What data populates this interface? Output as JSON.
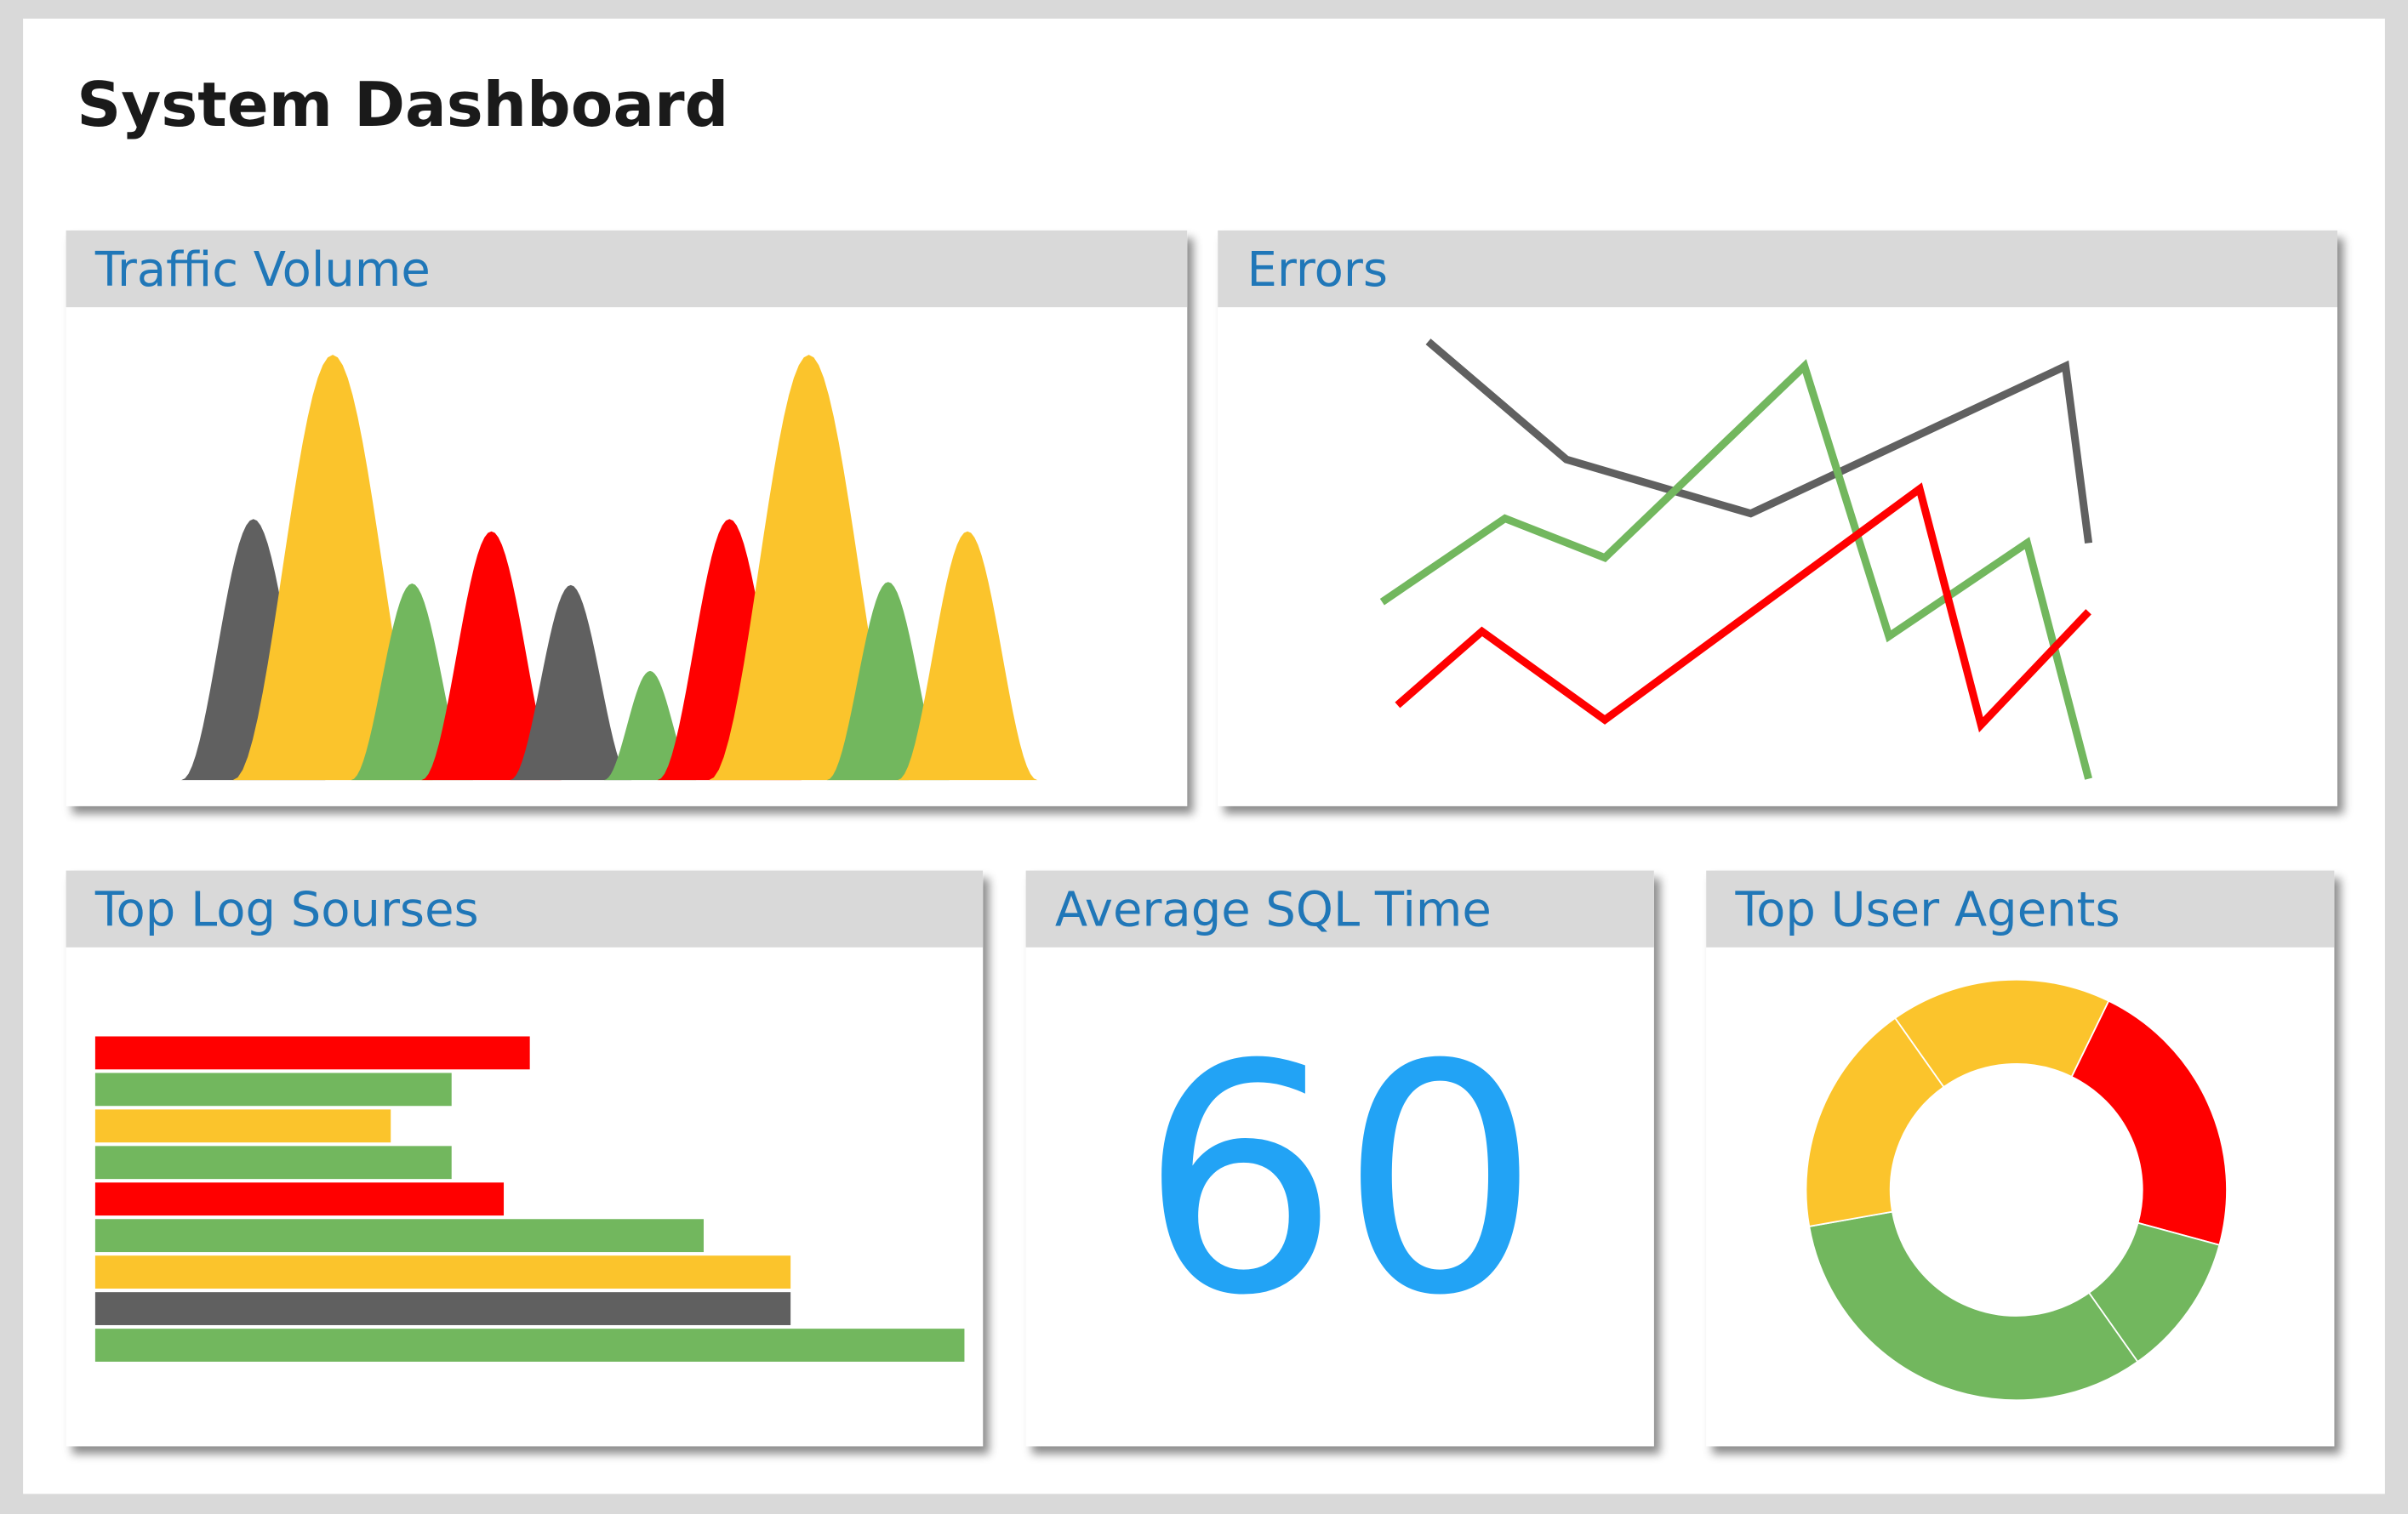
{
  "header": {
    "title": "System Dashboard"
  },
  "chart_data": [
    {
      "type": "peaks",
      "title": "Traffic Volume",
      "values": [
        170,
        277,
        128,
        162,
        127,
        71,
        170,
        277,
        129,
        162
      ],
      "colors": [
        "#606060",
        "#fbc42c",
        "#72b75e",
        "#ff0000",
        "#606060",
        "#72b75e",
        "#ff0000",
        "#fbc42c",
        "#72b75e",
        "#fbc42c"
      ]
    },
    {
      "type": "line",
      "title": "Errors",
      "xlim": [
        0,
        100
      ],
      "ylim": [
        0,
        100
      ],
      "series": [
        {
          "color": "#606060",
          "x": [
            10,
            28,
            52,
            93,
            96
          ],
          "values": [
            93,
            69,
            58,
            88,
            52
          ]
        },
        {
          "color": "#72b75e",
          "x": [
            4,
            20,
            33,
            59,
            70,
            88,
            96
          ],
          "values": [
            40,
            57,
            49,
            88,
            33,
            52,
            4
          ]
        },
        {
          "color": "#ff0000",
          "x": [
            6,
            17,
            33,
            74,
            82,
            96
          ],
          "values": [
            19,
            34,
            16,
            63,
            15,
            38
          ]
        }
      ]
    },
    {
      "type": "hbar",
      "title": "Top Log Sourses",
      "xlim": [
        0,
        100
      ],
      "values": [
        50,
        41,
        34,
        41,
        47,
        70,
        80,
        80,
        100
      ],
      "colors": [
        "#ff0000",
        "#72b75e",
        "#fbc42c",
        "#72b75e",
        "#ff0000",
        "#72b75e",
        "#fbc42c",
        "#606060",
        "#72b75e"
      ]
    },
    {
      "type": "number",
      "title": "Average SQL Time",
      "value": 60,
      "color": "#22a3f5"
    },
    {
      "type": "donut",
      "title": "Top User Agents",
      "values": [
        22,
        11,
        32,
        18,
        17
      ],
      "colors": [
        "#ff0000",
        "#72b75e",
        "#72b75e",
        "#fbc42c",
        "#fbc42c"
      ]
    }
  ]
}
